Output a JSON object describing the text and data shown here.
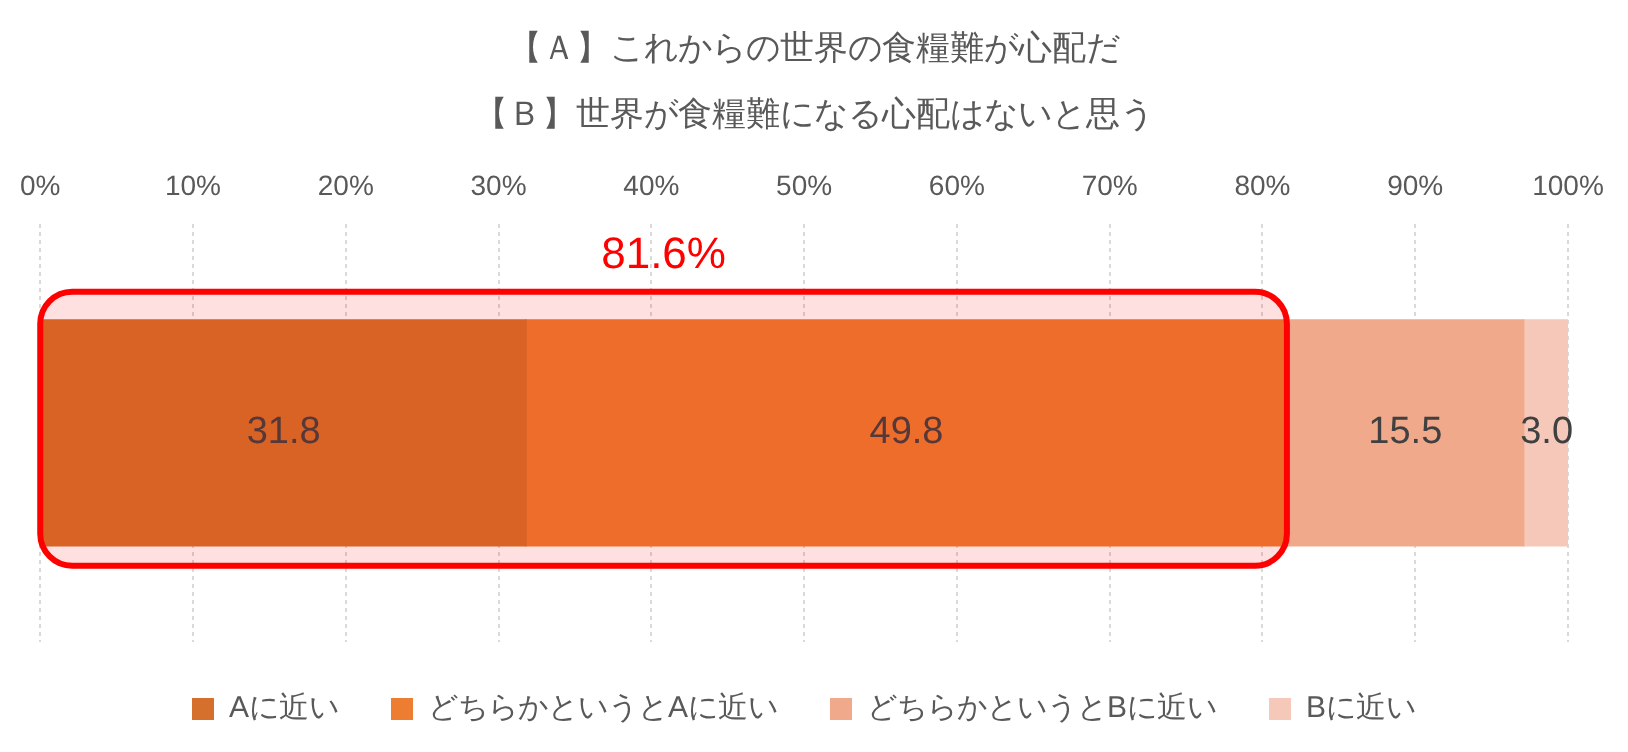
{
  "chart_data": {
    "type": "bar",
    "orientation": "horizontal",
    "stacked": true,
    "title": "【Ａ】これからの世界の食糧難が心配だ",
    "subtitle": "【Ｂ】世界が食糧難になる心配はないと思う",
    "categories": [
      null
    ],
    "series": [
      {
        "name": "Aに近い",
        "color": "#d4702b",
        "values": [
          31.8
        ],
        "value_labels": [
          "31.8"
        ]
      },
      {
        "name": "どちらかというとAに近い",
        "color": "#ed7d31",
        "values": [
          49.8
        ],
        "value_labels": [
          "49.8"
        ]
      },
      {
        "name": "どちらかというとBに近い",
        "color": "#f0a98b",
        "values": [
          15.5
        ],
        "value_labels": [
          "15.5"
        ]
      },
      {
        "name": "Bに近い",
        "color": "#f5c8b9",
        "values": [
          3.0
        ],
        "value_labels": [
          "3.0"
        ]
      }
    ],
    "xlim": [
      0,
      100
    ],
    "xticks": [
      {
        "value": 0,
        "label": "0%"
      },
      {
        "value": 10,
        "label": "10%"
      },
      {
        "value": 20,
        "label": "20%"
      },
      {
        "value": 30,
        "label": "30%"
      },
      {
        "value": 40,
        "label": "40%"
      },
      {
        "value": 50,
        "label": "50%"
      },
      {
        "value": 60,
        "label": "60%"
      },
      {
        "value": 70,
        "label": "70%"
      },
      {
        "value": 80,
        "label": "80%"
      },
      {
        "value": 90,
        "label": "90%"
      },
      {
        "value": 100,
        "label": "100%"
      }
    ],
    "grid": "x",
    "legend": "bottom",
    "bands": [
      {
        "axis": "x",
        "from": 0,
        "to": 81.6,
        "label": "81.6%",
        "color": "#ff0000"
      }
    ]
  }
}
